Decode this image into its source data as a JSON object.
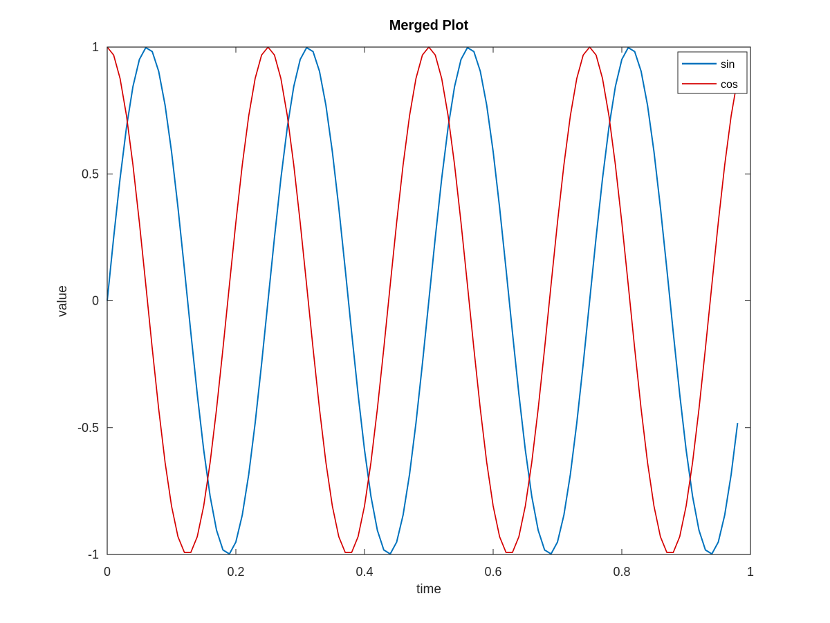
{
  "chart_data": {
    "type": "line",
    "title": "Merged Plot",
    "xlabel": "time",
    "ylabel": "value",
    "xlim": [
      0,
      1
    ],
    "ylim": [
      -1,
      1
    ],
    "xticks": [
      0,
      0.2,
      0.4,
      0.6,
      0.8,
      1
    ],
    "xtick_labels": [
      "0",
      "0.2",
      "0.4",
      "0.6",
      "0.8",
      "1"
    ],
    "yticks": [
      -1,
      -0.5,
      0,
      0.5,
      1
    ],
    "ytick_labels": [
      "-1",
      "-0.5",
      "0",
      "0.5",
      "1"
    ],
    "grid": false,
    "legend": "top-right",
    "x": [
      0,
      0.01,
      0.02,
      0.03,
      0.04,
      0.05,
      0.06,
      0.07,
      0.08,
      0.09,
      0.1,
      0.11,
      0.12,
      0.13,
      0.14,
      0.15,
      0.16,
      0.17,
      0.18,
      0.19,
      0.2,
      0.21,
      0.22,
      0.23,
      0.24,
      0.25,
      0.26,
      0.27,
      0.28,
      0.29,
      0.3,
      0.31,
      0.32,
      0.33,
      0.34,
      0.35,
      0.36,
      0.37,
      0.38,
      0.39,
      0.4,
      0.41,
      0.42,
      0.43,
      0.44,
      0.45,
      0.46,
      0.47,
      0.48,
      0.49,
      0.5,
      0.51,
      0.52,
      0.53,
      0.54,
      0.55,
      0.56,
      0.57,
      0.58,
      0.59,
      0.6,
      0.61,
      0.62,
      0.63,
      0.64,
      0.65,
      0.66,
      0.67,
      0.68,
      0.69,
      0.7,
      0.71,
      0.72,
      0.73,
      0.74,
      0.75,
      0.76,
      0.77,
      0.78,
      0.79,
      0.8,
      0.81,
      0.82,
      0.83,
      0.84,
      0.85,
      0.86,
      0.87,
      0.88,
      0.89,
      0.9,
      0.91,
      0.92,
      0.93,
      0.94,
      0.95,
      0.96,
      0.97,
      0.98
    ],
    "series": [
      {
        "name": "sin",
        "color": "#0072bd",
        "values": [
          0,
          0.2487,
          0.4818,
          0.6845,
          0.8443,
          0.951,
          0.998,
          0.9823,
          0.9048,
          0.7705,
          0.5878,
          0.3681,
          0.1253,
          -0.1253,
          -0.3681,
          -0.5878,
          -0.7705,
          -0.9048,
          -0.9823,
          -0.998,
          -0.951,
          -0.8443,
          -0.6845,
          -0.4818,
          -0.2487,
          0,
          0.2487,
          0.4818,
          0.6845,
          0.8443,
          0.951,
          0.998,
          0.9823,
          0.9048,
          0.7705,
          0.5878,
          0.3681,
          0.1253,
          -0.1253,
          -0.3681,
          -0.5878,
          -0.7705,
          -0.9048,
          -0.9823,
          -0.998,
          -0.951,
          -0.8443,
          -0.6845,
          -0.4818,
          -0.2487,
          0,
          0.2487,
          0.4818,
          0.6845,
          0.8443,
          0.951,
          0.998,
          0.9823,
          0.9048,
          0.7705,
          0.5878,
          0.3681,
          0.1253,
          -0.1253,
          -0.3681,
          -0.5878,
          -0.7705,
          -0.9048,
          -0.9823,
          -0.998,
          -0.951,
          -0.8443,
          -0.6845,
          -0.4818,
          -0.2487,
          0,
          0.2487,
          0.4818,
          0.6845,
          0.8443,
          0.951,
          0.998,
          0.9823,
          0.9048,
          0.7705,
          0.5878,
          0.3681,
          0.1253,
          -0.1253,
          -0.3681,
          -0.5878,
          -0.7705,
          -0.9048,
          -0.9823,
          -0.998,
          -0.951,
          -0.8443,
          -0.6845,
          -0.4818
        ]
      },
      {
        "name": "cos",
        "color": "#d40000",
        "values": [
          1,
          0.9686,
          0.8763,
          0.729,
          0.5358,
          0.309,
          0.0628,
          -0.1874,
          -0.4258,
          -0.6374,
          -0.809,
          -0.9298,
          -0.9921,
          -0.9921,
          -0.9298,
          -0.809,
          -0.6374,
          -0.4258,
          -0.1874,
          0.0628,
          0.309,
          0.5358,
          0.729,
          0.8763,
          0.9686,
          1,
          0.9686,
          0.8763,
          0.729,
          0.5358,
          0.309,
          0.0628,
          -0.1874,
          -0.4258,
          -0.6374,
          -0.809,
          -0.9298,
          -0.9921,
          -0.9921,
          -0.9298,
          -0.809,
          -0.6374,
          -0.4258,
          -0.1874,
          0.0628,
          0.309,
          0.5358,
          0.729,
          0.8763,
          0.9686,
          1,
          0.9686,
          0.8763,
          0.729,
          0.5358,
          0.309,
          0.0628,
          -0.1874,
          -0.4258,
          -0.6374,
          -0.809,
          -0.9298,
          -0.9921,
          -0.9921,
          -0.9298,
          -0.809,
          -0.6374,
          -0.4258,
          -0.1874,
          0.0628,
          0.309,
          0.5358,
          0.729,
          0.8763,
          0.9686,
          1,
          0.9686,
          0.8763,
          0.729,
          0.5358,
          0.309,
          0.0628,
          -0.1874,
          -0.4258,
          -0.6374,
          -0.809,
          -0.9298,
          -0.9921,
          -0.9921,
          -0.9298,
          -0.809,
          -0.6374,
          -0.4258,
          -0.1874,
          0.0628,
          0.309,
          0.5358,
          0.729,
          0.8763
        ]
      }
    ]
  }
}
